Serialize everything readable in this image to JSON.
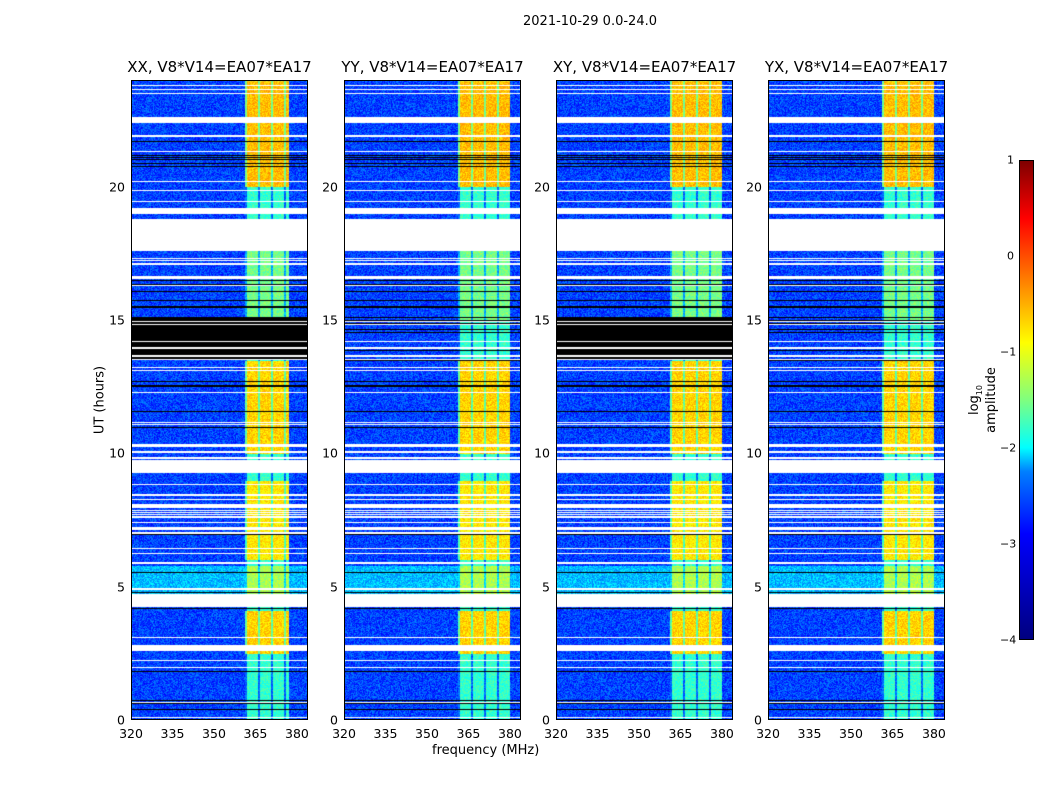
{
  "chart_data": {
    "type": "heatmap",
    "title": "2021-10-29 0.0-24.0",
    "xlabel": "frequency (MHz)",
    "ylabel": "UT (hours)",
    "xlim": [
      320,
      384
    ],
    "ylim": [
      0,
      24
    ],
    "xticks": [
      "320",
      "335",
      "350",
      "365",
      "380"
    ],
    "yticks": [
      "0",
      "5",
      "10",
      "15",
      "20"
    ],
    "panels": [
      {
        "title": "XX, V8*V14=EA07*EA17",
        "blocked": true,
        "band": [
          361,
          377
        ]
      },
      {
        "title": "YY, V8*V14=EA07*EA17",
        "blocked": false,
        "band": [
          361,
          380
        ]
      },
      {
        "title": "XY, V8*V14=EA07*EA17",
        "blocked": true,
        "band": [
          361,
          380
        ]
      },
      {
        "title": "YX, V8*V14=EA07*EA17",
        "blocked": false,
        "band": [
          361,
          380
        ]
      }
    ],
    "blank_intervals_hours": [
      [
        22.4,
        22.6
      ],
      [
        19.0,
        19.2
      ],
      [
        17.6,
        18.8
      ],
      [
        9.3,
        9.75
      ],
      [
        4.25,
        4.7
      ],
      [
        2.6,
        2.8
      ]
    ],
    "flagged_black_hours": [
      [
        13.5,
        15.1
      ]
    ],
    "colorbar": {
      "label_main": "log",
      "label_sub": "10",
      "label_rest": " amplitude",
      "ticks": [
        "1",
        "0",
        "−1",
        "−2",
        "−3",
        "−4"
      ],
      "range": [
        -4,
        1
      ],
      "colormap": "jet"
    }
  }
}
